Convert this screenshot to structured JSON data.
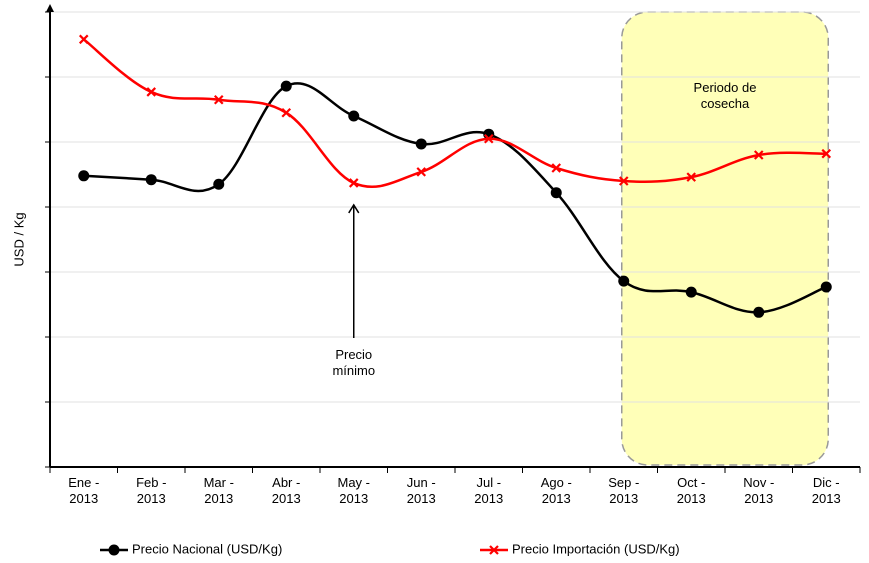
{
  "chart_data": {
    "type": "line",
    "y_label": "USD / Kg",
    "categories": [
      "Ene - 2013",
      "Feb - 2013",
      "Mar - 2013",
      "Abr - 2013",
      "May - 2013",
      "Jun - 2013",
      "Jul - 2013",
      "Ago - 2013",
      "Sep - 2013",
      "Oct - 2013",
      "Nov - 2013",
      "Dic - 2013"
    ],
    "series": [
      {
        "name": "Precio Nacional (USD/Kg)",
        "color": "#000000",
        "marker": "circle",
        "values": [
          4.48,
          4.42,
          4.35,
          5.86,
          5.4,
          4.97,
          5.12,
          4.22,
          2.86,
          2.69,
          2.38,
          2.77
        ]
      },
      {
        "name": "Precio Importación (USD/Kg)",
        "color": "#ff0000",
        "marker": "x",
        "values": [
          6.58,
          5.77,
          5.65,
          5.45,
          4.37,
          4.54,
          5.05,
          4.6,
          4.4,
          4.46,
          4.8,
          4.82
        ]
      }
    ],
    "ylim": [
      0,
      7
    ],
    "yticks": [
      0,
      1,
      2,
      3,
      4,
      5,
      6,
      7
    ],
    "grid": true,
    "annotations": [
      {
        "text": "Periodo de cosecha",
        "from": 8,
        "to": 11
      },
      {
        "text": "Precio mínimo",
        "category": 4
      }
    ],
    "legend": "bottom"
  }
}
